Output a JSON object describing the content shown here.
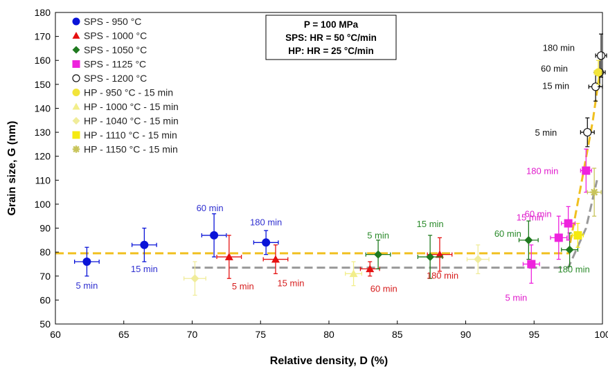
{
  "chart_data": {
    "type": "scatter",
    "xlabel": "Relative density, D (%)",
    "ylabel": "Grain size, G (nm)",
    "xlim": [
      60,
      100
    ],
    "ylim": [
      50,
      180
    ],
    "xticks": [
      "60",
      "65",
      "70",
      "75",
      "80",
      "85",
      "90",
      "95",
      "100"
    ],
    "yticks": [
      "50",
      "60",
      "70",
      "80",
      "90",
      "100",
      "110",
      "120",
      "130",
      "140",
      "150",
      "160",
      "170",
      "180"
    ],
    "grid": false,
    "legend_position": "top-left",
    "info_box": [
      "P = 100 MPa",
      "SPS: HR = 50 °C/min",
      "HP: HR = 25 °C/min"
    ],
    "series": [
      {
        "name": "SPS - 950 °C",
        "marker": "circle",
        "color": "#0a14d8",
        "label_color": "#2f2fd0",
        "points": [
          {
            "x": 62.3,
            "y": 76,
            "xerr": 0.9,
            "yerr": 6,
            "label": "5 min"
          },
          {
            "x": 66.5,
            "y": 83,
            "xerr": 0.9,
            "yerr": 7,
            "label": "15 min"
          },
          {
            "x": 71.6,
            "y": 87,
            "xerr": 0.9,
            "yerr": 9,
            "label": "60 min"
          },
          {
            "x": 75.4,
            "y": 84,
            "xerr": 0.9,
            "yerr": 5,
            "label": "180 min"
          }
        ]
      },
      {
        "name": "SPS - 1000 °C",
        "marker": "triangle",
        "color": "#e51010",
        "label_color": "#d61c1c",
        "points": [
          {
            "x": 72.7,
            "y": 78,
            "xerr": 0.9,
            "yerr": 9,
            "label": "5 min"
          },
          {
            "x": 76.1,
            "y": 77,
            "xerr": 0.9,
            "yerr": 6,
            "label": "15 min"
          },
          {
            "x": 83.0,
            "y": 73,
            "xerr": 0.7,
            "yerr": 3,
            "label": "60 min"
          },
          {
            "x": 88.1,
            "y": 79,
            "xerr": 0.9,
            "yerr": 7,
            "label": "180 min"
          }
        ]
      },
      {
        "name": "SPS - 1050 °C",
        "marker": "diamond",
        "color": "#1f7a1f",
        "label_color": "#2a8a2a",
        "points": [
          {
            "x": 83.6,
            "y": 79,
            "xerr": 0.9,
            "yerr": 6,
            "label": "5 min"
          },
          {
            "x": 87.4,
            "y": 78,
            "xerr": 0.9,
            "yerr": 9,
            "label": "15 min"
          },
          {
            "x": 94.6,
            "y": 85,
            "xerr": 0.7,
            "yerr": 8,
            "label": "60 min"
          },
          {
            "x": 97.6,
            "y": 81,
            "xerr": 0.6,
            "yerr": 7,
            "label": "180 min"
          }
        ]
      },
      {
        "name": "SPS - 1125 °C",
        "marker": "square",
        "color": "#ee22dd",
        "label_color": "#e01ccc",
        "points": [
          {
            "x": 94.8,
            "y": 75,
            "xerr": 0.6,
            "yerr": 8,
            "label": "5 min"
          },
          {
            "x": 96.8,
            "y": 86,
            "xerr": 0.6,
            "yerr": 9,
            "label": "15 min"
          },
          {
            "x": 97.5,
            "y": 92,
            "xerr": 0.5,
            "yerr": 7,
            "label": "60 min"
          },
          {
            "x": 98.8,
            "y": 114,
            "xerr": 0.4,
            "yerr": 9,
            "label": "180 min"
          }
        ]
      },
      {
        "name": "SPS - 1200 °C",
        "marker": "open-circle",
        "color": "#111111",
        "label_color": "#111111",
        "points": [
          {
            "x": 98.9,
            "y": 130,
            "xerr": 0.5,
            "yerr": 6,
            "label": "5 min"
          },
          {
            "x": 99.5,
            "y": 149,
            "xerr": 0.5,
            "yerr": 6,
            "label": "15 min"
          },
          {
            "x": 99.8,
            "y": 155,
            "xerr": 0.4,
            "yerr": 6,
            "label": "60 min"
          },
          {
            "x": 99.9,
            "y": 162,
            "xerr": 0.4,
            "yerr": 9,
            "label": "180 min"
          }
        ]
      },
      {
        "name": "HP - 950 °C - 15 min",
        "marker": "circle",
        "color": "#f2e43a",
        "label_color": "#111111",
        "points": [
          {
            "x": 99.7,
            "y": 155,
            "xerr": 0.3,
            "yerr": 5
          }
        ]
      },
      {
        "name": "HP - 1000 °C - 15 min",
        "marker": "triangle",
        "color": "#f2ee8a",
        "label_color": "#111111",
        "points": [
          {
            "x": 81.8,
            "y": 71,
            "xerr": 0.6,
            "yerr": 5
          }
        ]
      },
      {
        "name": "HP - 1040 °C - 15 min",
        "marker": "diamond",
        "color": "#f0ec9a",
        "label_color": "#111111",
        "points": [
          {
            "x": 70.2,
            "y": 69,
            "xerr": 0.8,
            "yerr": 7
          },
          {
            "x": 90.9,
            "y": 77,
            "xerr": 0.8,
            "yerr": 6
          }
        ]
      },
      {
        "name": "HP - 1110 °C - 15 min",
        "marker": "square",
        "color": "#f5ea10",
        "label_color": "#111111",
        "points": [
          {
            "x": 98.2,
            "y": 87,
            "xerr": 0.4,
            "yerr": 5
          }
        ]
      },
      {
        "name": "HP - 1150 °C - 15 min",
        "marker": "asterisk",
        "color": "#c8c45a",
        "label_color": "#111111",
        "points": [
          {
            "x": 99.4,
            "y": 105,
            "xerr": 0.5,
            "yerr": 10
          }
        ]
      }
    ],
    "trend_lines": [
      {
        "color": "#f0c020",
        "points": [
          [
            60,
            79.5
          ],
          [
            97.5,
            79.5
          ],
          [
            98.5,
            110
          ],
          [
            99.3,
            135
          ],
          [
            99.8,
            155
          ]
        ]
      },
      {
        "color": "#999999",
        "points": [
          [
            70,
            73.5
          ],
          [
            97.5,
            73.5
          ],
          [
            98.8,
            90
          ],
          [
            99.6,
            110
          ]
        ]
      }
    ]
  }
}
